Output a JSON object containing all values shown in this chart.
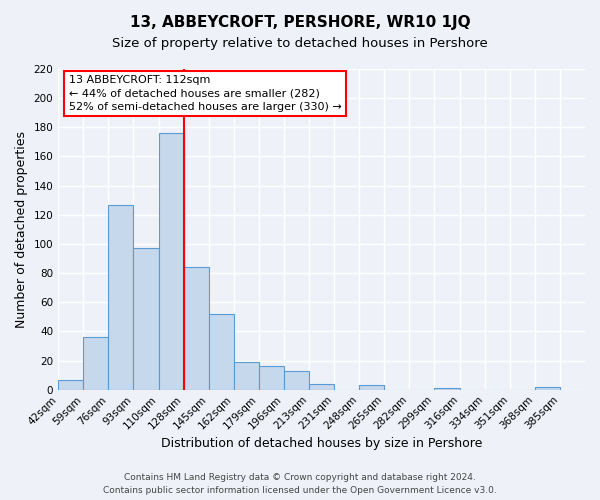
{
  "title": "13, ABBEYCROFT, PERSHORE, WR10 1JQ",
  "subtitle": "Size of property relative to detached houses in Pershore",
  "xlabel": "Distribution of detached houses by size in Pershore",
  "ylabel": "Number of detached properties",
  "bin_labels": [
    "42sqm",
    "59sqm",
    "76sqm",
    "93sqm",
    "110sqm",
    "128sqm",
    "145sqm",
    "162sqm",
    "179sqm",
    "196sqm",
    "213sqm",
    "231sqm",
    "248sqm",
    "265sqm",
    "282sqm",
    "299sqm",
    "316sqm",
    "334sqm",
    "351sqm",
    "368sqm",
    "385sqm"
  ],
  "bar_values": [
    7,
    36,
    127,
    97,
    176,
    84,
    52,
    19,
    16,
    13,
    4,
    0,
    3,
    0,
    0,
    1,
    0,
    0,
    0,
    2
  ],
  "bar_color": "#c5d8ec",
  "bar_edge_color": "#5b9bd5",
  "vline_color": "red",
  "vline_position": 4.5,
  "ylim": [
    0,
    220
  ],
  "yticks": [
    0,
    20,
    40,
    60,
    80,
    100,
    120,
    140,
    160,
    180,
    200,
    220
  ],
  "annotation_text": "13 ABBEYCROFT: 112sqm\n← 44% of detached houses are smaller (282)\n52% of semi-detached houses are larger (330) →",
  "annotation_box_color": "white",
  "annotation_box_edgecolor": "red",
  "footer_line1": "Contains HM Land Registry data © Crown copyright and database right 2024.",
  "footer_line2": "Contains public sector information licensed under the Open Government Licence v3.0.",
  "background_color": "#eef2f8",
  "grid_color": "white",
  "title_fontsize": 11,
  "subtitle_fontsize": 9.5,
  "label_fontsize": 9,
  "tick_fontsize": 7.5,
  "footer_fontsize": 6.5
}
